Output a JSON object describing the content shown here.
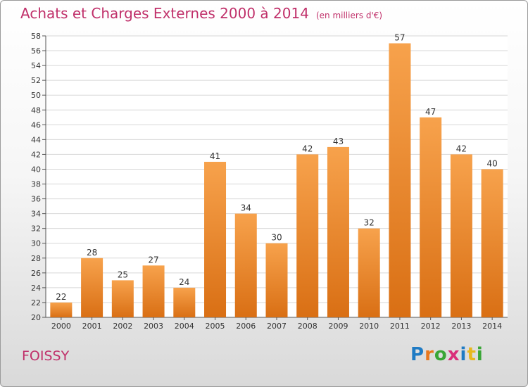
{
  "header": {
    "title": "Achats et Charges Externes 2000 à 2014",
    "unit": "(en milliers d'€)"
  },
  "footer": {
    "town": "FOISSY",
    "brand": "Proxiti"
  },
  "colors": {
    "bar_light": "#f7a24c",
    "bar_dark": "#d96f14",
    "title": "#c0306a",
    "grid": "#d7d7d7"
  },
  "chart_data": {
    "type": "bar",
    "title": "Achats et Charges Externes 2000 à 2014",
    "subtitle": "(en milliers d'€)",
    "categories": [
      "2000",
      "2001",
      "2002",
      "2003",
      "2004",
      "2005",
      "2006",
      "2007",
      "2008",
      "2009",
      "2010",
      "2011",
      "2012",
      "2013",
      "2014"
    ],
    "values": [
      22,
      28,
      25,
      27,
      24,
      41,
      34,
      30,
      42,
      43,
      32,
      57,
      47,
      42,
      40
    ],
    "ylim": [
      20,
      58
    ],
    "ytick_step": 2,
    "grid": true,
    "data_labels": true
  }
}
